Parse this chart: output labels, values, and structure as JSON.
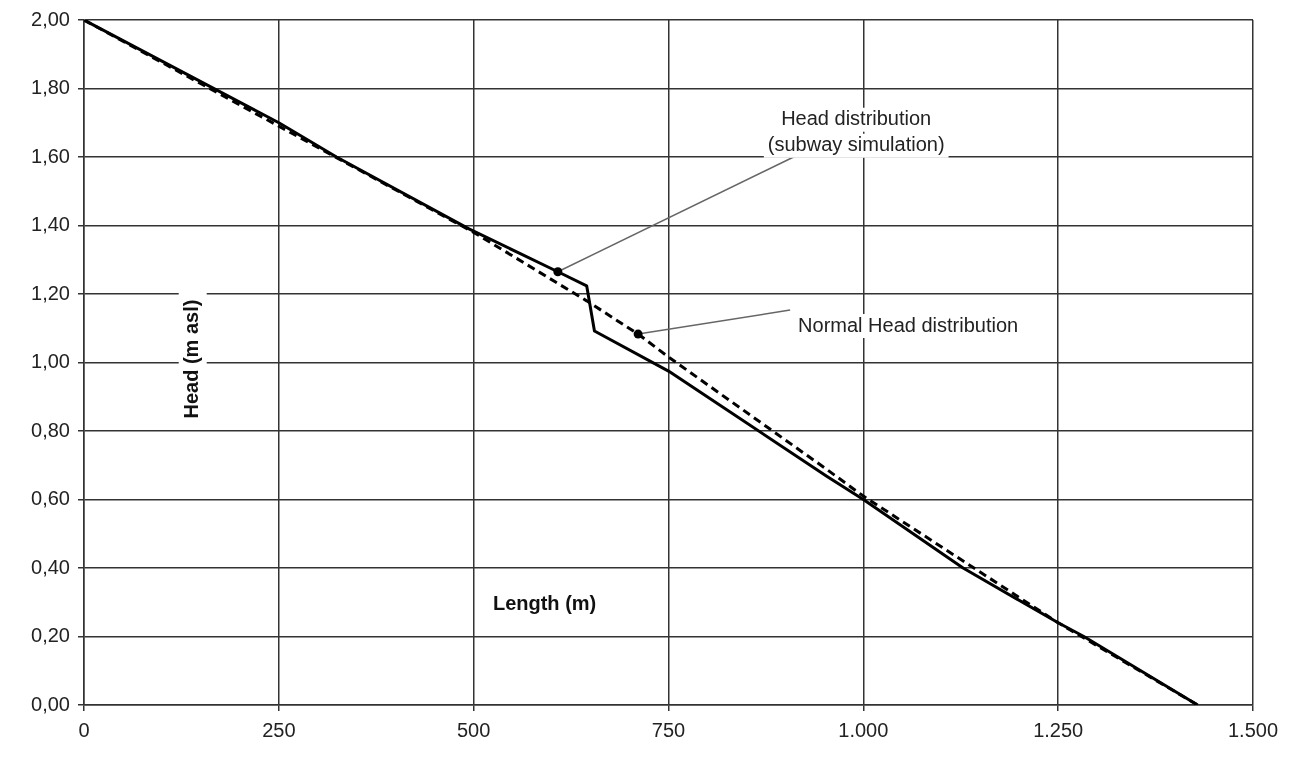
{
  "chart_data": {
    "type": "line",
    "xlabel": "Length (m)",
    "ylabel": "Head (m asl)",
    "xlim": [
      0,
      1500
    ],
    "xticks": [
      0,
      250,
      500,
      750,
      {
        "value": 1000,
        "label": "1.000"
      },
      {
        "value": 1250,
        "label": "1.250"
      },
      {
        "value": 1500,
        "label": "1.500"
      }
    ],
    "ylim": [
      0,
      2
    ],
    "yticks": [
      {
        "value": 0,
        "label": "0,00"
      },
      {
        "value": 0.2,
        "label": "0,20"
      },
      {
        "value": 0.4,
        "label": "0,40"
      },
      {
        "value": 0.6,
        "label": "0,60"
      },
      {
        "value": 0.8,
        "label": "0,80"
      },
      {
        "value": 1,
        "label": "1,00"
      },
      {
        "value": 1.2,
        "label": "1,20"
      },
      {
        "value": 1.4,
        "label": "1,40"
      },
      {
        "value": 1.6,
        "label": "1,60"
      },
      {
        "value": 1.8,
        "label": "1,80"
      },
      {
        "value": 2,
        "label": "2,00"
      }
    ],
    "series": [
      {
        "color": "#000000",
        "line_style": "solid",
        "x": [
          0,
          250,
          324,
          494,
          608,
          645,
          655,
          750,
          953,
          1000,
          1128,
          1250,
          1283,
          1429
        ],
        "values": [
          2.0,
          1.7,
          1.6,
          1.39,
          1.265,
          1.224,
          1.092,
          0.975,
          0.668,
          0.6,
          0.4,
          0.24,
          0.2,
          0
        ]
      },
      {
        "color": "#000000",
        "line_style": "dashed",
        "x": [
          0,
          250,
          500,
          645,
          711,
          750,
          953,
          1000,
          1250,
          1429
        ],
        "values": [
          2.0,
          1.69,
          1.38,
          1.18,
          1.083,
          1.016,
          0.688,
          0.61,
          0.24,
          0
        ]
      }
    ],
    "annotations": [
      {
        "text": "Head distribution\n(subway simulation)",
        "x": 608,
        "y": 1.265
      },
      {
        "text": "Normal Head distribution",
        "x": 711,
        "y": 1.083
      }
    ],
    "grid": true,
    "legend": false,
    "marker": "none"
  }
}
